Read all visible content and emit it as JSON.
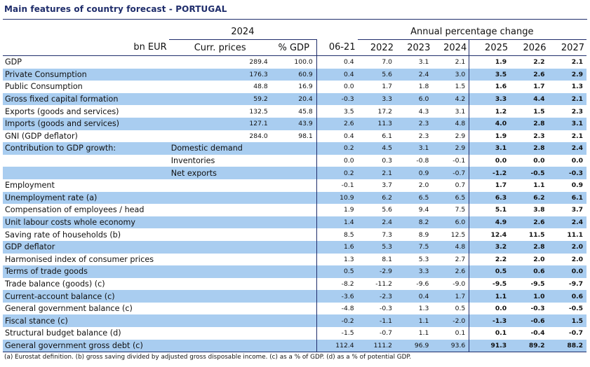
{
  "title": "Main features of country forecast - PORTUGAL",
  "header": {
    "year_2024": "2024",
    "annual_change": "Annual percentage change",
    "bn_eur": "bn EUR",
    "curr_prices": "Curr. prices",
    "pct_gdp": "% GDP",
    "col_0621": "06-21",
    "col_2022": "2022",
    "col_2023": "2023",
    "col_2024": "2024",
    "col_2025": "2025",
    "col_2026": "2026",
    "col_2027": "2027"
  },
  "rows": [
    {
      "label": "GDP",
      "sub": "",
      "curr": "289.4",
      "pct": "100.0",
      "v": [
        "0.4",
        "7.0",
        "3.1",
        "2.1",
        "1.9",
        "2.2",
        "2.1"
      ],
      "band": false
    },
    {
      "label": "Private Consumption",
      "sub": "",
      "curr": "176.3",
      "pct": "60.9",
      "v": [
        "0.4",
        "5.6",
        "2.4",
        "3.0",
        "3.5",
        "2.6",
        "2.9"
      ],
      "band": true
    },
    {
      "label": "Public Consumption",
      "sub": "",
      "curr": "48.8",
      "pct": "16.9",
      "v": [
        "0.0",
        "1.7",
        "1.8",
        "1.5",
        "1.6",
        "1.7",
        "1.3"
      ],
      "band": false
    },
    {
      "label": "Gross fixed capital formation",
      "sub": "",
      "curr": "59.2",
      "pct": "20.4",
      "v": [
        "-0.3",
        "3.3",
        "6.0",
        "4.2",
        "3.3",
        "4.4",
        "2.1"
      ],
      "band": true
    },
    {
      "label": "Exports (goods and services)",
      "sub": "",
      "curr": "132.5",
      "pct": "45.8",
      "v": [
        "3.5",
        "17.2",
        "4.3",
        "3.1",
        "1.2",
        "1.5",
        "2.3"
      ],
      "band": false
    },
    {
      "label": "Imports (goods and services)",
      "sub": "",
      "curr": "127.1",
      "pct": "43.9",
      "v": [
        "2.6",
        "11.3",
        "2.3",
        "4.8",
        "4.0",
        "2.8",
        "3.1"
      ],
      "band": true
    },
    {
      "label": "GNI (GDP deflator)",
      "sub": "",
      "curr": "284.0",
      "pct": "98.1",
      "v": [
        "0.4",
        "6.1",
        "2.3",
        "2.9",
        "1.9",
        "2.3",
        "2.1"
      ],
      "band": false
    },
    {
      "label": "Contribution to GDP growth:",
      "sub": "Domestic demand",
      "curr": "",
      "pct": "",
      "v": [
        "0.2",
        "4.5",
        "3.1",
        "2.9",
        "3.1",
        "2.8",
        "2.4"
      ],
      "band": true
    },
    {
      "label": "",
      "sub": "Inventories",
      "curr": "",
      "pct": "",
      "v": [
        "0.0",
        "0.3",
        "-0.8",
        "-0.1",
        "0.0",
        "0.0",
        "0.0"
      ],
      "band": false
    },
    {
      "label": "",
      "sub": "Net exports",
      "curr": "",
      "pct": "",
      "v": [
        "0.2",
        "2.1",
        "0.9",
        "-0.7",
        "-1.2",
        "-0.5",
        "-0.3"
      ],
      "band": true
    },
    {
      "label": "Employment",
      "sub": "",
      "curr": "",
      "pct": "",
      "v": [
        "-0.1",
        "3.7",
        "2.0",
        "0.7",
        "1.7",
        "1.1",
        "0.9"
      ],
      "band": false
    },
    {
      "label": "Unemployment rate (a)",
      "sub": "",
      "curr": "",
      "pct": "",
      "v": [
        "10.9",
        "6.2",
        "6.5",
        "6.5",
        "6.3",
        "6.2",
        "6.1"
      ],
      "band": true
    },
    {
      "label": "Compensation of employees / head",
      "sub": "",
      "curr": "",
      "pct": "",
      "v": [
        "1.9",
        "5.6",
        "9.4",
        "7.5",
        "5.1",
        "3.8",
        "3.7"
      ],
      "band": false
    },
    {
      "label": "Unit labour costs whole economy",
      "sub": "",
      "curr": "",
      "pct": "",
      "v": [
        "1.4",
        "2.4",
        "8.2",
        "6.0",
        "4.9",
        "2.6",
        "2.4"
      ],
      "band": true
    },
    {
      "label": "Saving rate of households (b)",
      "sub": "",
      "curr": "",
      "pct": "",
      "v": [
        "8.5",
        "7.3",
        "8.9",
        "12.5",
        "12.4",
        "11.5",
        "11.1"
      ],
      "band": false
    },
    {
      "label": "GDP deflator",
      "sub": "",
      "curr": "",
      "pct": "",
      "v": [
        "1.6",
        "5.3",
        "7.5",
        "4.8",
        "3.2",
        "2.8",
        "2.0"
      ],
      "band": true
    },
    {
      "label": "Harmonised index of consumer prices",
      "sub": "",
      "curr": "",
      "pct": "",
      "v": [
        "1.3",
        "8.1",
        "5.3",
        "2.7",
        "2.2",
        "2.0",
        "2.0"
      ],
      "band": false
    },
    {
      "label": "Terms of trade goods",
      "sub": "",
      "curr": "",
      "pct": "",
      "v": [
        "0.5",
        "-2.9",
        "3.3",
        "2.6",
        "0.5",
        "0.6",
        "0.0"
      ],
      "band": true
    },
    {
      "label": "Trade balance (goods) (c)",
      "sub": "",
      "curr": "",
      "pct": "",
      "v": [
        "-8.2",
        "-11.2",
        "-9.6",
        "-9.0",
        "-9.5",
        "-9.5",
        "-9.7"
      ],
      "band": false
    },
    {
      "label": "Current-account balance (c)",
      "sub": "",
      "curr": "",
      "pct": "",
      "v": [
        "-3.6",
        "-2.3",
        "0.4",
        "1.7",
        "1.1",
        "1.0",
        "0.6"
      ],
      "band": true
    },
    {
      "label": "General government balance (c)",
      "sub": "",
      "curr": "",
      "pct": "",
      "v": [
        "-4.8",
        "-0.3",
        "1.3",
        "0.5",
        "0.0",
        "-0.3",
        "-0.5"
      ],
      "band": false
    },
    {
      "label": "Fiscal stance (c)",
      "sub": "",
      "curr": "",
      "pct": "",
      "v": [
        "-0.2",
        "-1.1",
        "1.1",
        "-2.0",
        "-1.3",
        "-0.6",
        "1.5"
      ],
      "band": true
    },
    {
      "label": "Structural budget balance (d)",
      "sub": "",
      "curr": "",
      "pct": "",
      "v": [
        "-1.5",
        "-0.7",
        "1.1",
        "0.1",
        "0.1",
        "-0.4",
        "-0.7"
      ],
      "band": false
    },
    {
      "label": "General government gross debt (c)",
      "sub": "",
      "curr": "",
      "pct": "",
      "v": [
        "112.4",
        "111.2",
        "96.9",
        "93.6",
        "91.3",
        "89.2",
        "88.2"
      ],
      "band": true
    }
  ],
  "footnote": "(a) Eurostat definition. (b) gross saving divided by adjusted gross disposable income. (c) as a % of GDP. (d) as a % of potential GDP.",
  "colors": {
    "band": "#a9cdf0",
    "title": "#1f2d6b",
    "rule": "#1f2d6b"
  }
}
